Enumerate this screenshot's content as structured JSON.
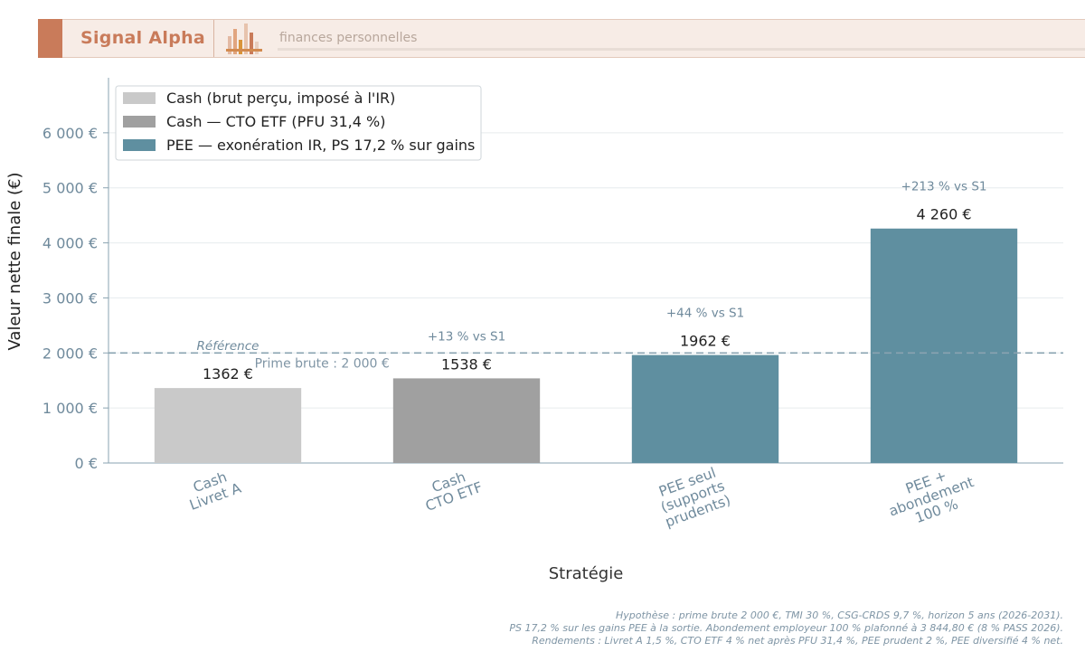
{
  "header": {
    "brand": "Signal Alpha",
    "tagline": "finances personnelles",
    "logo_icon": "bar-chart-logo-icon",
    "colors": {
      "accent": "#c97b5a",
      "banner_bg": "#f7ece6"
    }
  },
  "chart_data": {
    "type": "bar",
    "xlabel": "Stratégie",
    "ylabel": "Valeur nette finale (€)",
    "ylim": [
      0,
      7000
    ],
    "yticks": [
      0,
      1000,
      2000,
      3000,
      4000,
      5000,
      6000
    ],
    "ytick_labels": [
      "0 €",
      "1 000 €",
      "2 000 €",
      "3 000 €",
      "4 000 €",
      "5 000 €",
      "6 000 €"
    ],
    "grid": true,
    "legend_position": "top-left",
    "categories": [
      [
        "Cash",
        "Livret A"
      ],
      [
        "Cash",
        "CTO ETF"
      ],
      [
        "PEE seul",
        "(supports",
        "prudents)"
      ],
      [
        "PEE +",
        "abondement",
        "100 %"
      ]
    ],
    "values": [
      1362,
      1538,
      1962,
      4260
    ],
    "value_labels": [
      "1362 €",
      "1538 €",
      "1962 €",
      "4 260 €"
    ],
    "comparison_labels": [
      "Référence",
      "+13 % vs S1",
      "+44 % vs S1",
      "+213 % vs S1"
    ],
    "series_index": [
      0,
      1,
      2,
      2
    ],
    "legend": [
      {
        "label": "Cash (brut perçu, imposé à l'IR)",
        "color": "#c9c9c9"
      },
      {
        "label": "Cash — CTO ETF (PFU 31,4 %)",
        "color": "#a0a0a0"
      },
      {
        "label": "PEE — exonération IR, PS 17,2 % sur gains",
        "color": "#5f8fa0"
      }
    ],
    "reference_line": {
      "value": 2000,
      "label": "Prime brute : 2 000 €",
      "color": "#8aa3b1"
    }
  },
  "footnote": {
    "lines": [
      "Hypothèse : prime brute 2 000 €, TMI 30 %, CSG-CRDS 9,7 %, horizon 5 ans (2026-2031).",
      "PS 17,2 % sur les gains PEE à la sortie. Abondement employeur 100 % plafonné à 3 844,80 € (8 % PASS 2026).",
      "Rendements : Livret A 1,5 %, CTO ETF 4 % net après PFU 31,4 %, PEE prudent 2 %, PEE diversifié 4 % net."
    ]
  }
}
